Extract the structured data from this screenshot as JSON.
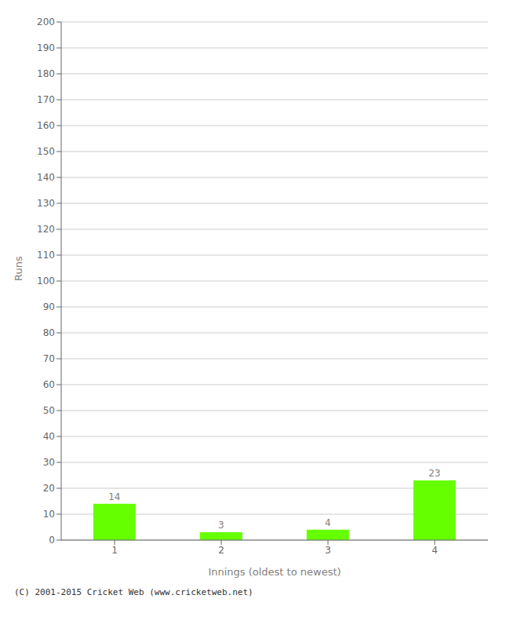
{
  "chart_data": {
    "type": "bar",
    "categories": [
      "1",
      "2",
      "3",
      "4"
    ],
    "values": [
      14,
      3,
      4,
      23
    ],
    "color": "#66ff00",
    "xlabel": "Innings (oldest to newest)",
    "ylabel": "Runs",
    "ylim": [
      0,
      200
    ],
    "yticks": [
      0,
      10,
      20,
      30,
      40,
      50,
      60,
      70,
      80,
      90,
      100,
      110,
      120,
      130,
      140,
      150,
      160,
      170,
      180,
      190,
      200
    ],
    "grid": true,
    "data_labels": true,
    "annotations": [
      "(C) 2001-2015 Cricket Web (www.cricketweb.net)"
    ]
  }
}
